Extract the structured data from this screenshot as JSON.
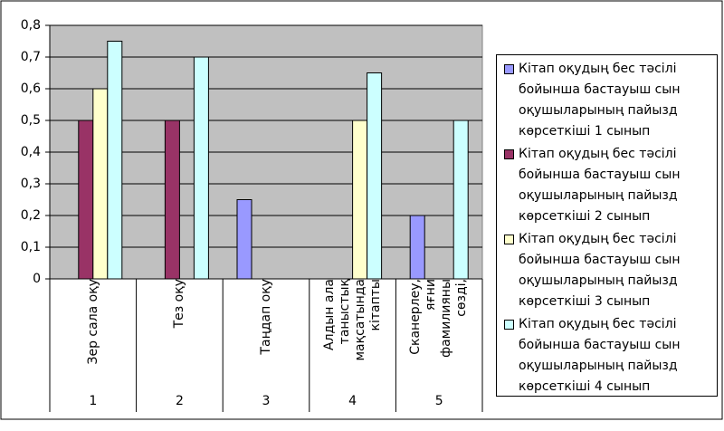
{
  "chart_data": {
    "type": "bar",
    "categories": [
      "Зер сала оқу",
      "Тез оқу",
      "Таңдап оқу",
      "Алдын ала таныстық мақсатында кітапты",
      "Сканерлеу, яғни фамилияны сөзді,"
    ],
    "groups": [
      "1",
      "2",
      "3",
      "4",
      "5"
    ],
    "series": [
      {
        "name": "Кітап оқудың бес тәсілі бойынша бастауыш сын оқушыларының пайызд көрсеткіші 1 сынып",
        "color": "#9999ff",
        "values": [
          null,
          null,
          0.25,
          null,
          0.2
        ]
      },
      {
        "name": "Кітап оқудың бес тәсілі бойынша бастауыш сын оқушыларының пайызд көрсеткіші 2 сынып",
        "color": "#993366",
        "values": [
          0.5,
          0.5,
          null,
          null,
          null
        ]
      },
      {
        "name": "Кітап оқудың бес тәсілі бойынша бастауыш сын оқушыларының пайызд көрсеткіші 3 сынып",
        "color": "#ffffcc",
        "values": [
          0.6,
          null,
          null,
          0.5,
          null
        ]
      },
      {
        "name": "Кітап оқудың бес тәсілі бойынша бастауыш сын оқушыларының пайызд көрсеткіші 4 сынып",
        "color": "#ccffff",
        "values": [
          0.75,
          0.7,
          null,
          0.65,
          0.5
        ]
      }
    ],
    "ylim": [
      0,
      0.8
    ],
    "yticks": [
      0,
      {
        "value": 0.1,
        "label": "0,1"
      },
      {
        "value": 0.2,
        "label": "0,2"
      },
      {
        "value": 0.3,
        "label": "0,3"
      },
      {
        "value": 0.4,
        "label": "0,4"
      },
      {
        "value": 0.5,
        "label": "0,5"
      },
      {
        "value": 0.6,
        "label": "0,6"
      },
      {
        "value": 0.7,
        "label": "0,7"
      },
      {
        "value": 0.8,
        "label": "0,8"
      }
    ],
    "grid": true,
    "legend": "right"
  }
}
